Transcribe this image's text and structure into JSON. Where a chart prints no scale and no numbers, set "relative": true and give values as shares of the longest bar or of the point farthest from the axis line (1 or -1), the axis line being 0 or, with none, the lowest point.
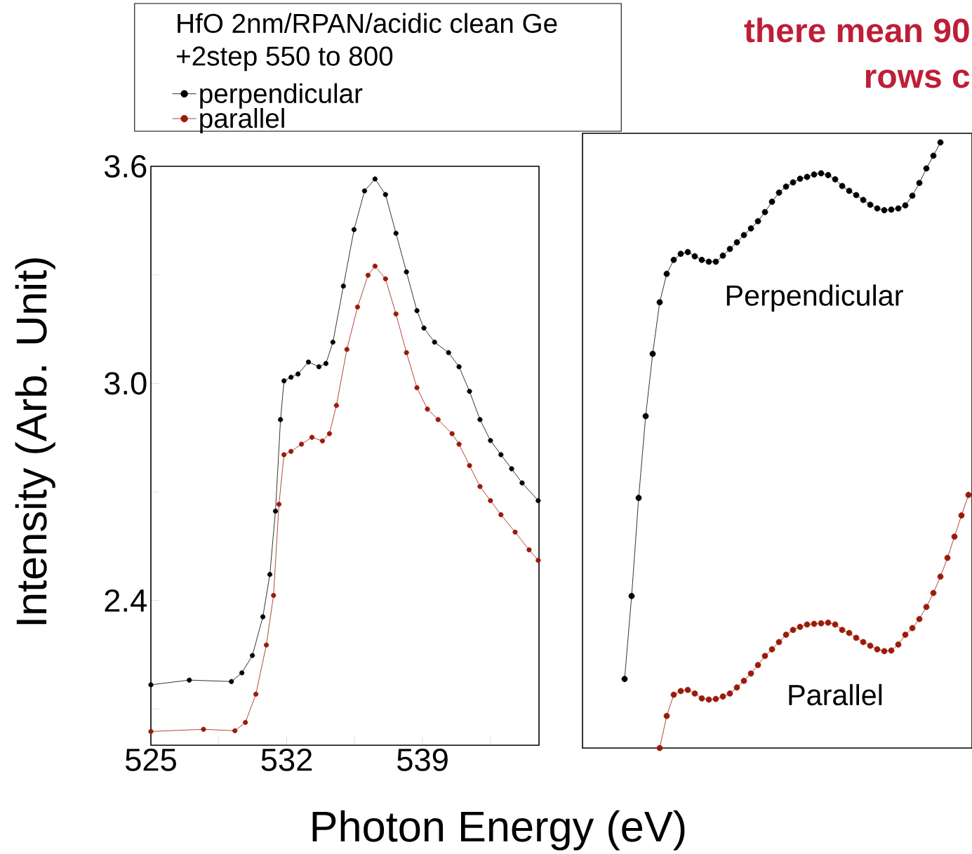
{
  "chart_data": [
    {
      "type": "line",
      "xlabel": "Photon Energy (eV)",
      "ylabel": "Intensity (Arb. Unit)",
      "legend_title": "HfO 2nm/RPAN/acidic clean Ge +2step 550 to 800",
      "legend": "top",
      "marker": "circle",
      "xlim": [
        525,
        545
      ],
      "ylim": [
        2.0,
        3.6
      ],
      "xticks": [
        525,
        {
          "value": 528.5,
          "label": null
        },
        532,
        {
          "value": 535.5,
          "label": null
        },
        539,
        {
          "value": 542.5,
          "label": null
        }
      ],
      "yticks": [
        {
          "value": 2.1,
          "label": null
        },
        2.4,
        {
          "value": 2.7,
          "label": null
        },
        {
          "value": 3.0,
          "label": "3.0"
        },
        {
          "value": 3.3,
          "label": null
        },
        3.6
      ],
      "series": [
        {
          "name": "perpendicular",
          "color": "#000000",
          "x": [
            525,
            526.98,
            529.15,
            529.69,
            530.23,
            530.77,
            531.13,
            531.42,
            531.68,
            531.86,
            532.22,
            532.58,
            533.12,
            533.66,
            534.02,
            534.38,
            534.92,
            535.47,
            536.01,
            536.55,
            537.09,
            537.63,
            538.17,
            538.71,
            539.07,
            539.62,
            540.34,
            540.88,
            541.42,
            541.96,
            542.5,
            543.04,
            543.59,
            544.13,
            544.96
          ],
          "values": [
            2.167,
            2.18,
            2.176,
            2.2,
            2.248,
            2.355,
            2.472,
            2.647,
            2.9,
            3.007,
            3.017,
            3.026,
            3.059,
            3.046,
            3.055,
            3.114,
            3.269,
            3.425,
            3.532,
            3.565,
            3.522,
            3.415,
            3.308,
            3.201,
            3.153,
            3.114,
            3.085,
            3.046,
            2.978,
            2.9,
            2.842,
            2.803,
            2.764,
            2.725,
            2.676
          ]
        },
        {
          "name": "parallel",
          "color": "#9b1a0a",
          "x": [
            525,
            527.71,
            529.33,
            529.87,
            530.41,
            530.95,
            531.32,
            531.6,
            531.86,
            532.22,
            532.76,
            533.3,
            533.84,
            534.2,
            534.56,
            535.1,
            535.65,
            536.19,
            536.55,
            537.09,
            537.63,
            538.17,
            538.71,
            539.25,
            539.8,
            540.52,
            540.88,
            541.42,
            541.96,
            542.5,
            543.04,
            543.77,
            544.49,
            544.96
          ],
          "values": [
            2.038,
            2.044,
            2.04,
            2.063,
            2.141,
            2.277,
            2.414,
            2.666,
            2.803,
            2.812,
            2.832,
            2.851,
            2.841,
            2.861,
            2.939,
            3.094,
            3.211,
            3.299,
            3.324,
            3.289,
            3.192,
            3.085,
            2.988,
            2.929,
            2.9,
            2.861,
            2.832,
            2.773,
            2.715,
            2.676,
            2.637,
            2.589,
            2.54,
            2.511
          ]
        }
      ]
    },
    {
      "type": "line",
      "relative": true,
      "marker": "circle",
      "categories": [
        null,
        null,
        null,
        null,
        null,
        null,
        null,
        null,
        null,
        null,
        null,
        null,
        null,
        null,
        null,
        null,
        null,
        null,
        null,
        null,
        null,
        null,
        null,
        null,
        null,
        null,
        null,
        null,
        null,
        null,
        null,
        null,
        null,
        null,
        null,
        null,
        null,
        null,
        null,
        null,
        null,
        null,
        null,
        null,
        null,
        null,
        null,
        null,
        null,
        null,
        null
      ],
      "annotations": [
        "there mean 90",
        "rows c"
      ],
      "series": [
        {
          "name": "Perpendicular",
          "color": "#000000",
          "values": [
            null,
            0.114,
            0.251,
            0.413,
            0.548,
            0.651,
            0.736,
            0.783,
            0.806,
            0.816,
            0.819,
            0.812,
            0.806,
            0.803,
            0.803,
            0.813,
            0.824,
            0.835,
            0.847,
            0.858,
            0.87,
            0.885,
            0.902,
            0.917,
            0.927,
            0.934,
            0.94,
            0.943,
            0.947,
            0.949,
            0.946,
            0.939,
            0.928,
            0.92,
            0.913,
            0.905,
            0.897,
            0.891,
            0.888,
            0.889,
            0.891,
            0.896,
            0.912,
            0.933,
            0.957,
            0.978,
            1.0,
            null,
            null,
            null,
            null
          ]
        },
        {
          "name": "Parallel",
          "color": "#9b1a0a",
          "values": [
            null,
            null,
            null,
            null,
            null,
            null,
            0,
            0.053,
            0.088,
            0.094,
            0.096,
            0.09,
            0.082,
            0.08,
            0.081,
            0.085,
            0.09,
            0.1,
            0.111,
            0.123,
            0.137,
            0.152,
            0.163,
            0.175,
            0.187,
            0.195,
            0.2,
            0.204,
            0.205,
            0.206,
            0.207,
            0.204,
            0.195,
            0.19,
            0.182,
            0.175,
            0.169,
            0.163,
            0.16,
            0.161,
            0.171,
            0.187,
            0.198,
            0.213,
            0.233,
            0.256,
            0.283,
            0.314,
            0.349,
            0.384,
            0.418
          ]
        }
      ]
    }
  ]
}
